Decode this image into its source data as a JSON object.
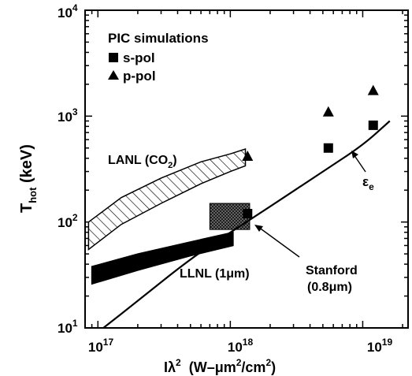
{
  "chart_data": {
    "type": "line",
    "xscale": "log",
    "yscale": "log",
    "xlim": [
      8e+16,
      2.2e+19
    ],
    "ylim": [
      10,
      10000
    ],
    "xlabel": {
      "main": "I",
      "lambda": "λ",
      "sq": "2",
      "units": "(W–μm",
      "u2": "2",
      "u3": "/cm",
      "u4": "2",
      "close": ")"
    },
    "ylabel": {
      "main": "T",
      "sub": "hot",
      "units": " (keV)"
    },
    "x_ticks": [
      {
        "value": 1e+17,
        "base": "10",
        "exp": "17"
      },
      {
        "value": 1e+18,
        "base": "10",
        "exp": "18"
      },
      {
        "value": 1e+19,
        "base": "10",
        "exp": "19"
      }
    ],
    "y_ticks": [
      {
        "value": 10,
        "base": "10",
        "exp": "1"
      },
      {
        "value": 100,
        "base": "10",
        "exp": "2"
      },
      {
        "value": 1000,
        "base": "10",
        "exp": "3"
      },
      {
        "value": 10000,
        "base": "10",
        "exp": "4"
      }
    ],
    "legend": {
      "title": "PIC simulations",
      "entries": [
        {
          "marker": "square",
          "label": "s-pol"
        },
        {
          "marker": "triangle",
          "label": "p-pol"
        }
      ]
    },
    "epsilon_curve": {
      "label_main": "ε",
      "label_sub": "e",
      "points": [
        [
          1.1e+17,
          10
        ],
        [
          2e+17,
          18
        ],
        [
          5e+17,
          45
        ],
        [
          1e+18,
          80
        ],
        [
          2e+18,
          140
        ],
        [
          5e+18,
          300
        ],
        [
          1e+19,
          530
        ],
        [
          1.6e+19,
          900
        ]
      ]
    },
    "bands": [
      {
        "label": "LANL (CO",
        "label_sub": "2",
        "label_close": ")",
        "style": "hatched",
        "upper": [
          [
            8.5e+16,
            100
          ],
          [
            1.5e+17,
            170
          ],
          [
            3e+17,
            260
          ],
          [
            6e+17,
            370
          ],
          [
            1e+18,
            440
          ],
          [
            1.3e+18,
            490
          ]
        ],
        "lower": [
          [
            8.5e+16,
            55
          ],
          [
            1.5e+17,
            95
          ],
          [
            3e+17,
            150
          ],
          [
            6e+17,
            230
          ],
          [
            1e+18,
            300
          ],
          [
            1.3e+18,
            340
          ]
        ]
      },
      {
        "label": "LLNL (1μm)",
        "style": "solid",
        "upper": [
          [
            9e+16,
            38
          ],
          [
            2e+17,
            50
          ],
          [
            5e+17,
            65
          ],
          [
            1.05e+18,
            80
          ]
        ],
        "lower": [
          [
            9e+16,
            26
          ],
          [
            2e+17,
            35
          ],
          [
            5e+17,
            48
          ],
          [
            1.05e+18,
            60
          ]
        ]
      },
      {
        "label": "Stanford",
        "label2": "(0.8μm)",
        "style": "cross-hatched",
        "x0": 7e+17,
        "x1": 1.4e+18,
        "y0": 85,
        "y1": 150
      }
    ],
    "s_pol_points": [
      [
        1.35e+18,
        120
      ],
      [
        5.5e+18,
        500
      ],
      [
        1.2e+19,
        820
      ]
    ],
    "p_pol_points": [
      [
        1.35e+18,
        420
      ],
      [
        5.5e+18,
        1100
      ],
      [
        1.2e+19,
        1750
      ]
    ]
  }
}
